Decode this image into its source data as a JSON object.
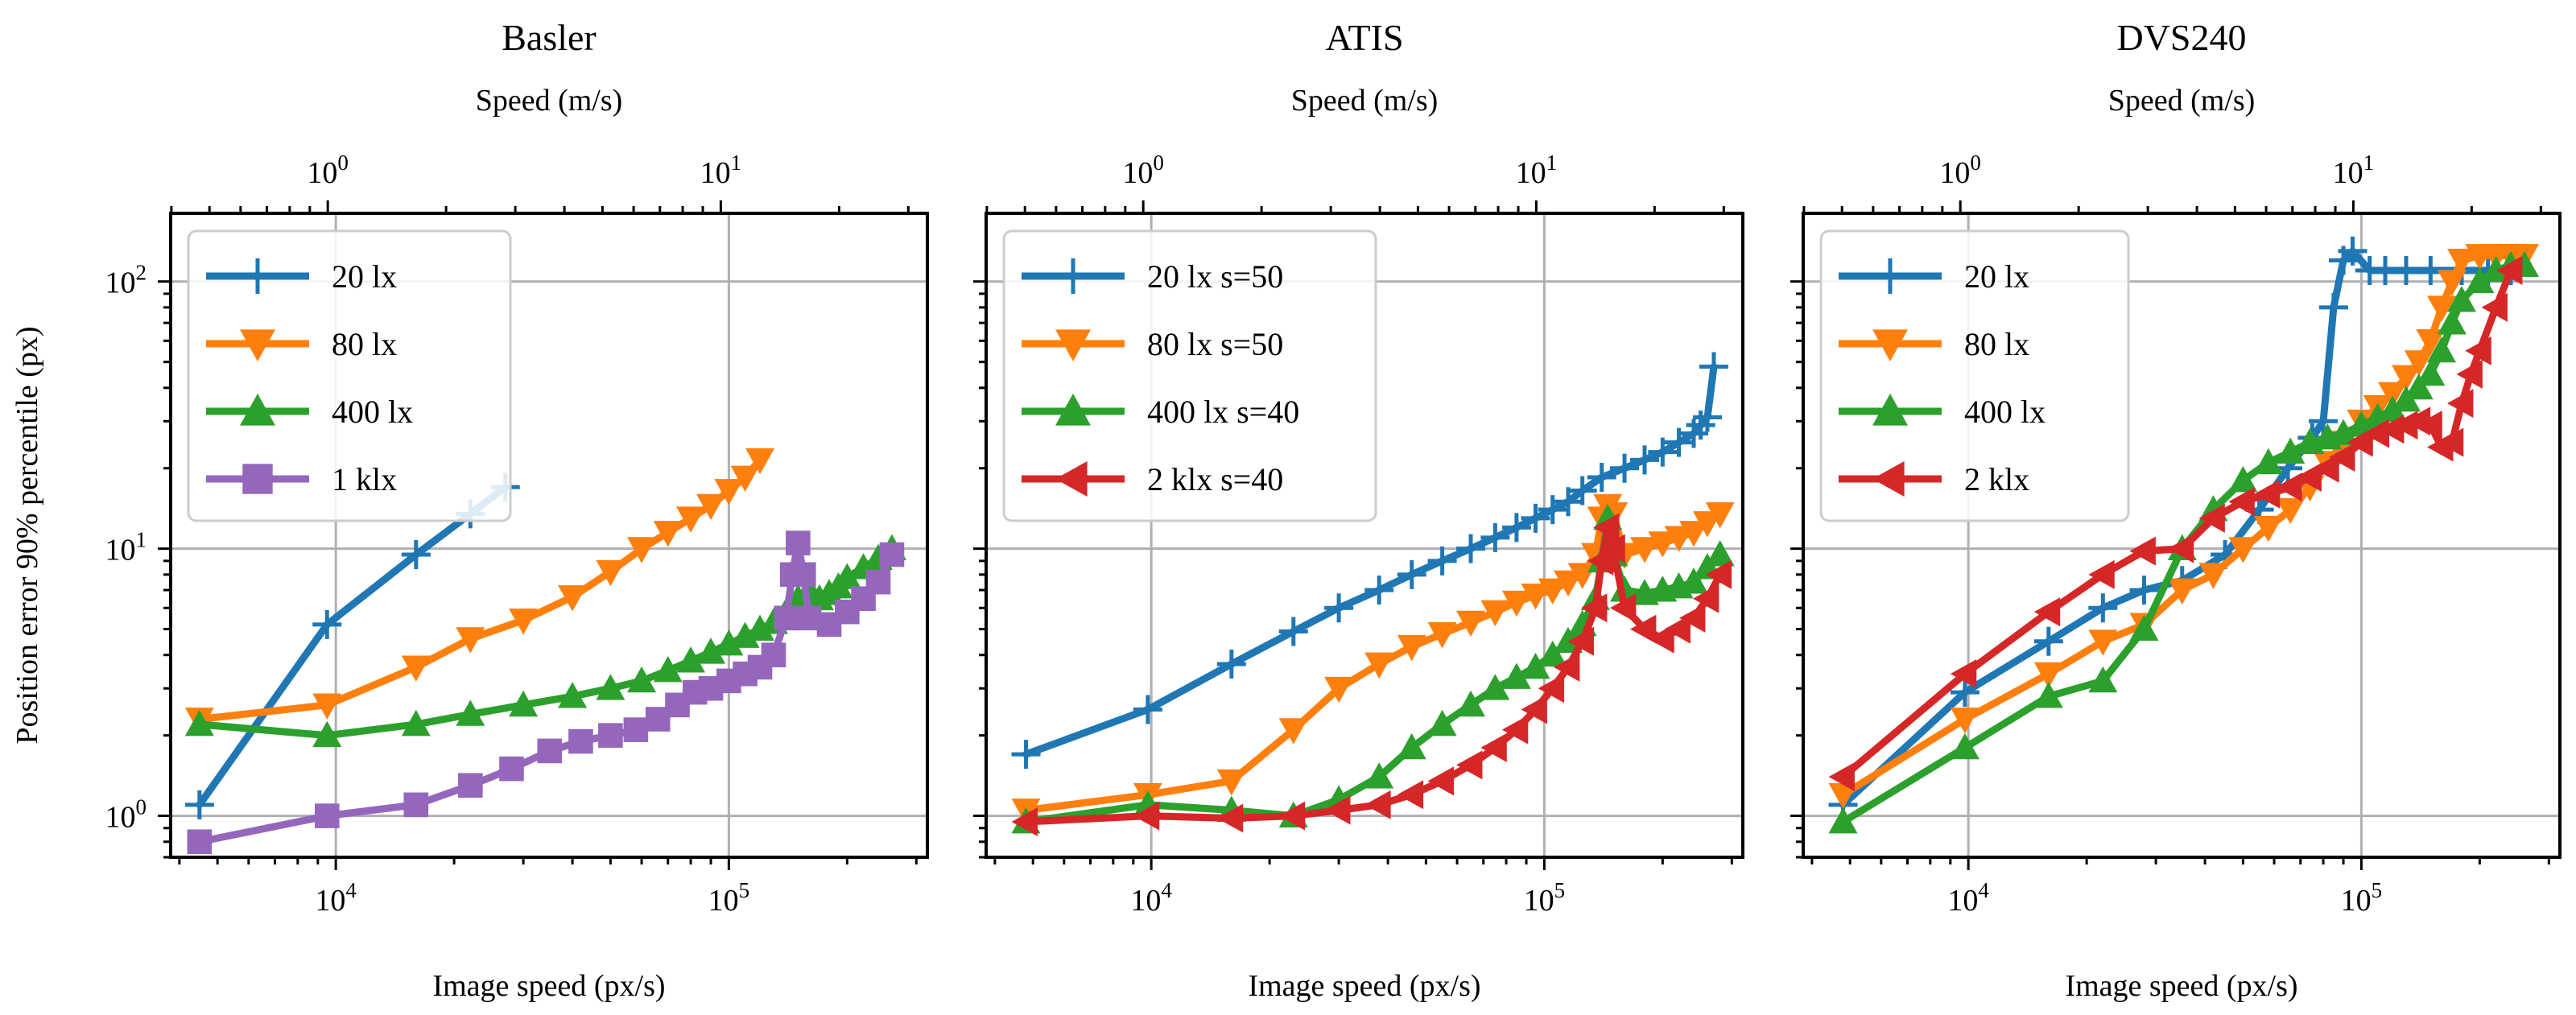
{
  "figure": {
    "shared_ylabel": "Position error 90% percentile (px)"
  },
  "chart_data": [
    {
      "type": "line",
      "title": "Basler",
      "xlabel": "Image speed (px/s)",
      "x2label": "Speed (m/s)",
      "ylabel": "Position error 90% percentile (px)",
      "xscale": "log",
      "yscale": "log",
      "xlim": [
        3800,
        320000
      ],
      "ylim": [
        0.7,
        180
      ],
      "x2_ticks": [
        {
          "value": 1,
          "label": "10^0"
        },
        {
          "value": 10,
          "label": "10^1"
        }
      ],
      "x2_factor": 0.00010482,
      "xticks": [
        {
          "value": 10000,
          "label": "10^4"
        },
        {
          "value": 100000,
          "label": "10^5"
        }
      ],
      "yticks": [
        {
          "value": 1,
          "label": "10^0"
        },
        {
          "value": 10,
          "label": "10^1"
        },
        {
          "value": 100,
          "label": "10^2"
        }
      ],
      "grid": true,
      "legend_position": "top-left",
      "series": [
        {
          "name": "20 lx",
          "color": "#1f77b4",
          "marker": "plus",
          "x": [
            4500,
            9500,
            16000,
            22000,
            27000
          ],
          "y": [
            1.1,
            5.2,
            9.5,
            13.5,
            17
          ]
        },
        {
          "name": "80 lx",
          "color": "#ff7f0e",
          "marker": "triangle-down",
          "x": [
            4500,
            9500,
            16000,
            22000,
            30000,
            40000,
            50000,
            60000,
            70000,
            80000,
            90000,
            100000,
            110000,
            120000
          ],
          "y": [
            2.3,
            2.6,
            3.6,
            4.6,
            5.4,
            6.6,
            8.2,
            10.0,
            11.5,
            13.0,
            14.5,
            16.5,
            18.5,
            21.5
          ]
        },
        {
          "name": "400 lx",
          "color": "#2ca02c",
          "marker": "triangle-up",
          "x": [
            4500,
            9500,
            16000,
            22000,
            30000,
            40000,
            50000,
            60000,
            70000,
            80000,
            90000,
            100000,
            110000,
            120000,
            130000,
            140000,
            150000,
            160000,
            170000,
            180000,
            190000,
            200000,
            220000,
            240000,
            260000
          ],
          "y": [
            2.2,
            2.0,
            2.2,
            2.4,
            2.6,
            2.8,
            3.0,
            3.2,
            3.5,
            3.8,
            4.1,
            4.4,
            4.7,
            5.0,
            5.3,
            5.8,
            6.5,
            7.0,
            6.5,
            6.8,
            7.2,
            7.8,
            8.5,
            9.2,
            10.0
          ]
        },
        {
          "name": "1 klx",
          "color": "#9467bd",
          "marker": "square",
          "x": [
            4500,
            9500,
            16000,
            22000,
            28000,
            35000,
            42000,
            50000,
            58000,
            66000,
            74000,
            82000,
            90000,
            100000,
            110000,
            120000,
            130000,
            140000,
            145000,
            150000,
            155000,
            160000,
            180000,
            200000,
            220000,
            240000,
            260000
          ],
          "y": [
            0.8,
            1.0,
            1.1,
            1.3,
            1.5,
            1.75,
            1.9,
            2.0,
            2.1,
            2.3,
            2.6,
            2.9,
            3.0,
            3.2,
            3.4,
            3.6,
            4.0,
            5.5,
            8.0,
            10.5,
            8.0,
            5.5,
            5.2,
            5.8,
            6.5,
            7.5,
            9.5
          ]
        }
      ]
    },
    {
      "type": "line",
      "title": "ATIS",
      "xlabel": "Image speed (px/s)",
      "x2label": "Speed (m/s)",
      "ylabel": "",
      "xscale": "log",
      "yscale": "log",
      "xlim": [
        3800,
        320000
      ],
      "ylim": [
        0.7,
        180
      ],
      "x2_ticks": [
        {
          "value": 1,
          "label": "10^0"
        },
        {
          "value": 10,
          "label": "10^1"
        }
      ],
      "x2_factor": 0.00010482,
      "xticks": [
        {
          "value": 10000,
          "label": "10^4"
        },
        {
          "value": 100000,
          "label": "10^5"
        }
      ],
      "yticks": [
        {
          "value": 1,
          "label": "10^0"
        },
        {
          "value": 10,
          "label": "10^1"
        },
        {
          "value": 100,
          "label": "10^2"
        }
      ],
      "grid": true,
      "legend_position": "top-left",
      "series": [
        {
          "name": "20 lx s=50",
          "color": "#1f77b4",
          "marker": "plus",
          "x": [
            4800,
            9800,
            16000,
            23000,
            30000,
            38000,
            46000,
            55000,
            65000,
            75000,
            85000,
            95000,
            105000,
            115000,
            125000,
            140000,
            160000,
            180000,
            200000,
            220000,
            240000,
            250000,
            260000,
            270000
          ],
          "y": [
            1.7,
            2.5,
            3.7,
            4.9,
            6.0,
            7.0,
            8.0,
            9.0,
            10.0,
            11.0,
            12.0,
            13.0,
            14.0,
            15.0,
            16.5,
            18.5,
            20.0,
            21.5,
            23.0,
            25.0,
            27.0,
            29.0,
            31.0,
            48.0
          ]
        },
        {
          "name": "80 lx s=50",
          "color": "#ff7f0e",
          "marker": "triangle-down",
          "x": [
            4800,
            9800,
            16000,
            23000,
            30000,
            38000,
            46000,
            55000,
            65000,
            75000,
            85000,
            95000,
            105000,
            115000,
            125000,
            135000,
            140000,
            145000,
            150000,
            160000,
            180000,
            200000,
            220000,
            240000,
            260000,
            280000
          ],
          "y": [
            1.05,
            1.2,
            1.35,
            2.1,
            3.0,
            3.7,
            4.3,
            4.8,
            5.3,
            5.8,
            6.3,
            6.7,
            7.0,
            7.5,
            8.0,
            9.5,
            13.0,
            14.5,
            13.5,
            9.5,
            10.0,
            10.5,
            11.0,
            11.5,
            12.5,
            13.5
          ]
        },
        {
          "name": "400 lx s=40",
          "color": "#2ca02c",
          "marker": "triangle-up",
          "x": [
            4800,
            9800,
            16000,
            23000,
            30000,
            38000,
            46000,
            55000,
            65000,
            75000,
            85000,
            95000,
            105000,
            115000,
            125000,
            135000,
            140000,
            145000,
            150000,
            160000,
            180000,
            200000,
            220000,
            240000,
            260000,
            280000
          ],
          "y": [
            0.95,
            1.1,
            1.05,
            1.0,
            1.15,
            1.4,
            1.8,
            2.2,
            2.6,
            3.0,
            3.3,
            3.6,
            4.0,
            4.5,
            5.2,
            6.5,
            9.0,
            13.0,
            9.5,
            7.0,
            6.8,
            7.0,
            7.2,
            7.5,
            8.5,
            9.5
          ]
        },
        {
          "name": "2 klx s=40",
          "color": "#d62728",
          "marker": "triangle-left",
          "x": [
            4800,
            9800,
            16000,
            23000,
            30000,
            38000,
            46000,
            55000,
            65000,
            75000,
            85000,
            95000,
            105000,
            115000,
            125000,
            135000,
            140000,
            145000,
            150000,
            160000,
            180000,
            200000,
            220000,
            240000,
            260000,
            280000
          ],
          "y": [
            0.95,
            1.0,
            0.98,
            1.0,
            1.05,
            1.1,
            1.2,
            1.35,
            1.55,
            1.8,
            2.1,
            2.5,
            3.0,
            3.6,
            4.5,
            6.0,
            9.0,
            12.0,
            10.0,
            6.0,
            5.0,
            4.6,
            5.0,
            5.5,
            6.5,
            8.0
          ]
        }
      ]
    },
    {
      "type": "line",
      "title": "DVS240",
      "xlabel": "Image speed (px/s)",
      "x2label": "Speed (m/s)",
      "ylabel": "",
      "xscale": "log",
      "yscale": "log",
      "xlim": [
        3800,
        320000
      ],
      "ylim": [
        0.7,
        180
      ],
      "x2_ticks": [
        {
          "value": 1,
          "label": "10^0"
        },
        {
          "value": 10,
          "label": "10^1"
        }
      ],
      "x2_factor": 0.00010482,
      "xticks": [
        {
          "value": 10000,
          "label": "10^4"
        },
        {
          "value": 100000,
          "label": "10^5"
        }
      ],
      "yticks": [
        {
          "value": 1,
          "label": "10^0"
        },
        {
          "value": 10,
          "label": "10^1"
        },
        {
          "value": 100,
          "label": "10^2"
        }
      ],
      "grid": true,
      "legend_position": "top-left",
      "series": [
        {
          "name": "20 lx",
          "color": "#1f77b4",
          "marker": "plus",
          "x": [
            4800,
            9800,
            16000,
            22000,
            28000,
            35000,
            45000,
            55000,
            65000,
            75000,
            80000,
            85000,
            90000,
            95000,
            105000,
            115000,
            130000,
            150000,
            180000,
            210000,
            240000
          ],
          "y": [
            1.1,
            2.9,
            4.5,
            6.0,
            7.0,
            7.6,
            9.5,
            14.0,
            20.0,
            26.0,
            30.0,
            80.0,
            120.0,
            130.0,
            110.0,
            110.0,
            110.0,
            110.0,
            110.0,
            110.0,
            110.0
          ]
        },
        {
          "name": "80 lx",
          "color": "#ff7f0e",
          "marker": "triangle-down",
          "x": [
            4800,
            9800,
            16000,
            22000,
            28000,
            35000,
            42000,
            50000,
            58000,
            66000,
            74000,
            82000,
            90000,
            100000,
            110000,
            120000,
            130000,
            140000,
            150000,
            160000,
            170000,
            180000,
            200000,
            220000,
            240000,
            260000
          ],
          "y": [
            1.2,
            2.3,
            3.4,
            4.5,
            5.2,
            7.0,
            8.0,
            10.0,
            12.0,
            14.0,
            17.0,
            21.0,
            25.0,
            30.0,
            34.0,
            38.0,
            44.0,
            50.0,
            60.0,
            80.0,
            100.0,
            120.0,
            125.0,
            125.0,
            125.0,
            125.0
          ]
        },
        {
          "name": "400 lx",
          "color": "#2ca02c",
          "marker": "triangle-up",
          "x": [
            4800,
            9800,
            16000,
            22000,
            28000,
            35000,
            42000,
            50000,
            58000,
            66000,
            74000,
            82000,
            90000,
            100000,
            110000,
            120000,
            130000,
            140000,
            150000,
            160000,
            170000,
            180000,
            200000,
            220000,
            240000,
            260000
          ],
          "y": [
            0.95,
            1.8,
            2.8,
            3.2,
            5.0,
            10.0,
            14.0,
            18.0,
            21.0,
            23.0,
            25.0,
            26.0,
            27.0,
            29.0,
            31.0,
            33.0,
            36.0,
            40.0,
            45.0,
            55.0,
            70.0,
            85.0,
            100.0,
            110.0,
            115.0,
            115.0
          ]
        },
        {
          "name": "2 klx",
          "color": "#d62728",
          "marker": "triangle-left",
          "x": [
            4800,
            9800,
            16000,
            22000,
            28000,
            35000,
            42000,
            50000,
            58000,
            66000,
            74000,
            82000,
            90000,
            100000,
            110000,
            120000,
            130000,
            140000,
            150000,
            160000,
            170000,
            180000,
            190000,
            200000,
            220000,
            240000
          ],
          "y": [
            1.4,
            3.4,
            5.8,
            8.0,
            9.8,
            10.0,
            13.0,
            15.0,
            16.0,
            17.0,
            18.5,
            20.0,
            22.0,
            25.0,
            27.0,
            28.0,
            29.0,
            30.0,
            29.0,
            24.0,
            25.0,
            35.0,
            45.0,
            55.0,
            80.0,
            110.0
          ]
        }
      ]
    }
  ]
}
